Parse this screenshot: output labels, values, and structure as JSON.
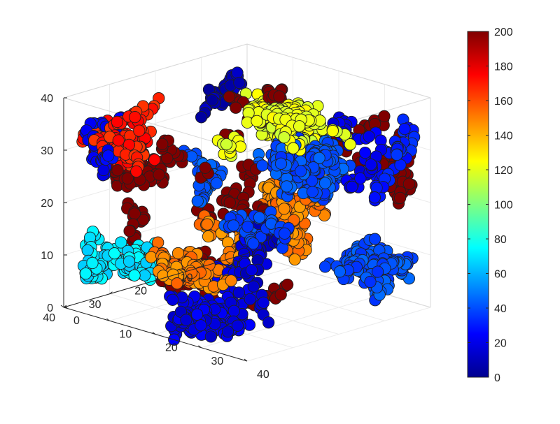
{
  "chart_data": {
    "type": "scatter3d",
    "title": "",
    "xlabel": "",
    "ylabel": "",
    "zlabel": "",
    "xlim": [
      0,
      40
    ],
    "ylim": [
      0,
      40
    ],
    "zlim": [
      0,
      40
    ],
    "x_ticks": [
      "0",
      "10",
      "20",
      "30",
      "40"
    ],
    "y_ticks": [
      "0",
      "10",
      "20",
      "30",
      "40"
    ],
    "z_ticks": [
      "0",
      "10",
      "20",
      "30",
      "40"
    ],
    "grid": true,
    "colormap": "jet",
    "color_range": [
      0,
      200
    ],
    "colorbar": {
      "placement": "right",
      "ticks": [
        "0",
        "20",
        "40",
        "60",
        "80",
        "100",
        "120",
        "140",
        "160",
        "180",
        "200"
      ]
    },
    "marker": "filled-circle",
    "cluster_samples": [
      {
        "x": 20,
        "y": 20,
        "z": 20,
        "value": 200
      },
      {
        "x": 8,
        "y": 12,
        "z": 28,
        "value": 120
      },
      {
        "x": 18,
        "y": 30,
        "z": 38,
        "value": 120
      },
      {
        "x": 32,
        "y": 6,
        "z": 8,
        "value": 70
      },
      {
        "x": 30,
        "y": 20,
        "z": 12,
        "value": 150
      },
      {
        "x": 14,
        "y": 22,
        "z": 16,
        "value": 150
      },
      {
        "x": 25,
        "y": 36,
        "z": 30,
        "value": 40
      },
      {
        "x": 34,
        "y": 26,
        "z": 4,
        "value": 20
      },
      {
        "x": 6,
        "y": 34,
        "z": 6,
        "value": 40
      },
      {
        "x": 36,
        "y": 10,
        "z": 34,
        "value": 170
      }
    ]
  }
}
